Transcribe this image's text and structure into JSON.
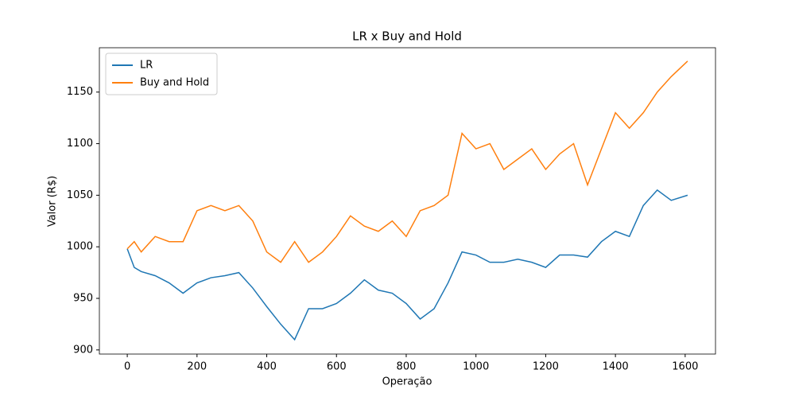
{
  "chart_data": {
    "type": "line",
    "title": "LR x Buy and Hold",
    "x_label": "Operação",
    "y_label": "Valor (R$)",
    "x": [
      0,
      20,
      40,
      80,
      120,
      160,
      200,
      240,
      280,
      320,
      360,
      400,
      440,
      480,
      520,
      560,
      600,
      640,
      680,
      720,
      760,
      800,
      840,
      880,
      920,
      960,
      1000,
      1040,
      1080,
      1120,
      1160,
      1200,
      1240,
      1280,
      1320,
      1360,
      1400,
      1440,
      1480,
      1520,
      1560,
      1607
    ],
    "series": [
      {
        "name": "LR",
        "color": "#1f77b4",
        "values": [
          998,
          980,
          976,
          972,
          965,
          955,
          965,
          970,
          972,
          975,
          960,
          942,
          925,
          910,
          940,
          940,
          945,
          955,
          968,
          958,
          955,
          945,
          930,
          940,
          965,
          995,
          992,
          985,
          985,
          988,
          985,
          980,
          992,
          992,
          990,
          1005,
          1015,
          1010,
          1040,
          1055,
          1045,
          1050
        ]
      },
      {
        "name": "Buy and Hold",
        "color": "#ff7f0e",
        "values": [
          998,
          1005,
          995,
          1010,
          1005,
          1005,
          1035,
          1040,
          1035,
          1040,
          1025,
          995,
          985,
          1005,
          985,
          995,
          1010,
          1030,
          1020,
          1015,
          1025,
          1010,
          1035,
          1040,
          1050,
          1110,
          1095,
          1100,
          1075,
          1085,
          1095,
          1075,
          1090,
          1100,
          1060,
          1095,
          1130,
          1115,
          1130,
          1150,
          1165,
          1180
        ]
      }
    ],
    "xlim": [
      -80,
      1687
    ],
    "ylim": [
      896,
      1193
    ],
    "xticks": [
      0,
      200,
      400,
      600,
      800,
      1000,
      1200,
      1400,
      1600
    ],
    "yticks": [
      900,
      950,
      1000,
      1050,
      1100,
      1150
    ],
    "legend": "upper left"
  }
}
